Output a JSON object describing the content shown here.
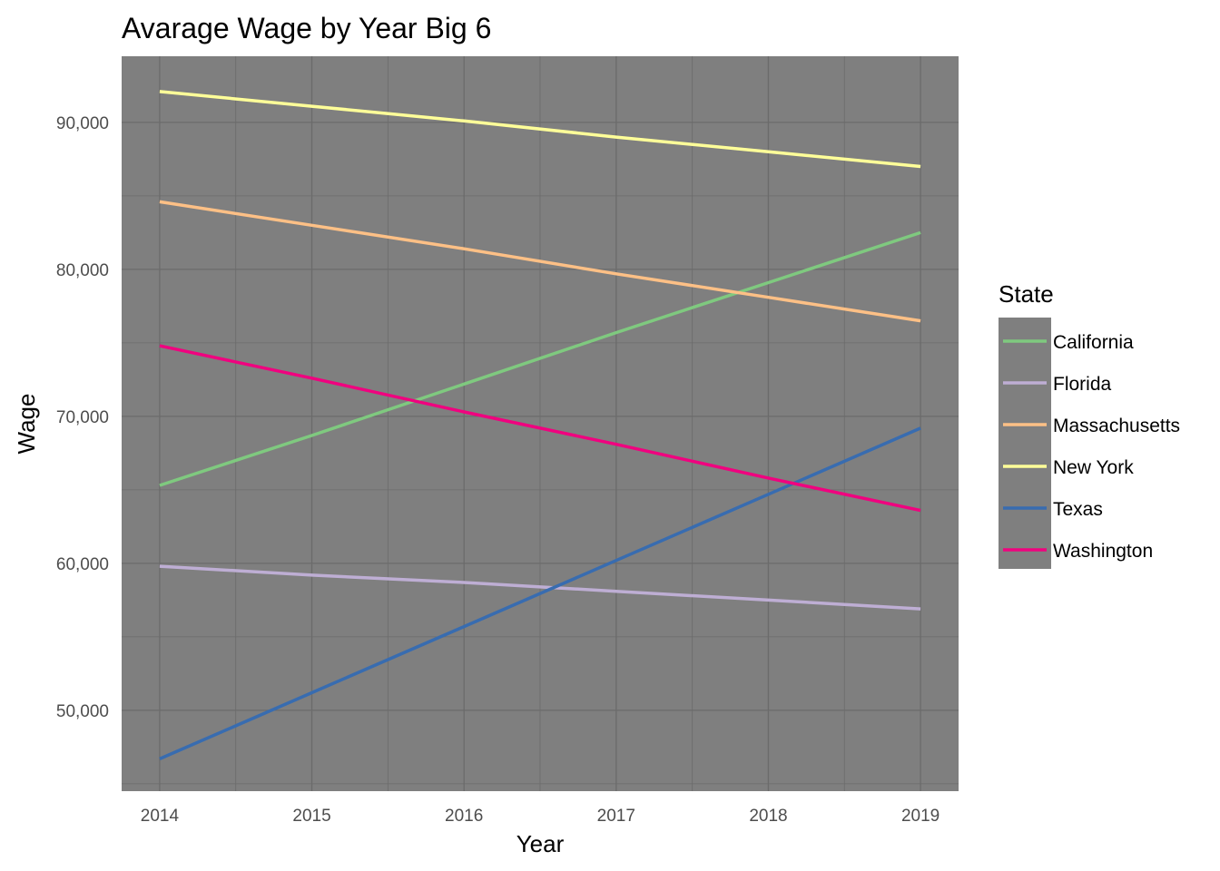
{
  "chart_data": {
    "type": "line",
    "title": "Avarage Wage by Year Big 6",
    "xlabel": "Year",
    "ylabel": "Wage",
    "x": [
      2014,
      2015,
      2016,
      2017,
      2018,
      2019
    ],
    "x_ticks": [
      "2014",
      "2015",
      "2016",
      "2017",
      "2018",
      "2019"
    ],
    "xlim": [
      2013.75,
      2019.25
    ],
    "ylim": [
      44500,
      94500
    ],
    "y_ticks": [
      50000,
      60000,
      70000,
      80000,
      90000
    ],
    "y_tick_labels": [
      "50,000",
      "60,000",
      "70,000",
      "80,000",
      "90,000"
    ],
    "grid": true,
    "panel_background": "#7f7f7f",
    "grid_color": "#6b6b6b",
    "legend": {
      "title": "State",
      "position": "right"
    },
    "series": [
      {
        "name": "California",
        "color": "#7fc97f",
        "values": [
          65300,
          68700,
          72200,
          75700,
          79100,
          82500
        ]
      },
      {
        "name": "Florida",
        "color": "#beaed4",
        "values": [
          59800,
          59200,
          58700,
          58100,
          57500,
          56900
        ]
      },
      {
        "name": "Massachusetts",
        "color": "#fdc086",
        "values": [
          84600,
          83000,
          81400,
          79700,
          78100,
          76500
        ]
      },
      {
        "name": "New York",
        "color": "#ffff99",
        "values": [
          92100,
          91100,
          90100,
          89000,
          88000,
          87000
        ]
      },
      {
        "name": "Texas",
        "color": "#386cb0",
        "values": [
          46700,
          51200,
          55700,
          60200,
          64700,
          69200
        ]
      },
      {
        "name": "Washington",
        "color": "#f0027f",
        "values": [
          74800,
          72600,
          70300,
          68100,
          65800,
          63600
        ]
      }
    ]
  }
}
